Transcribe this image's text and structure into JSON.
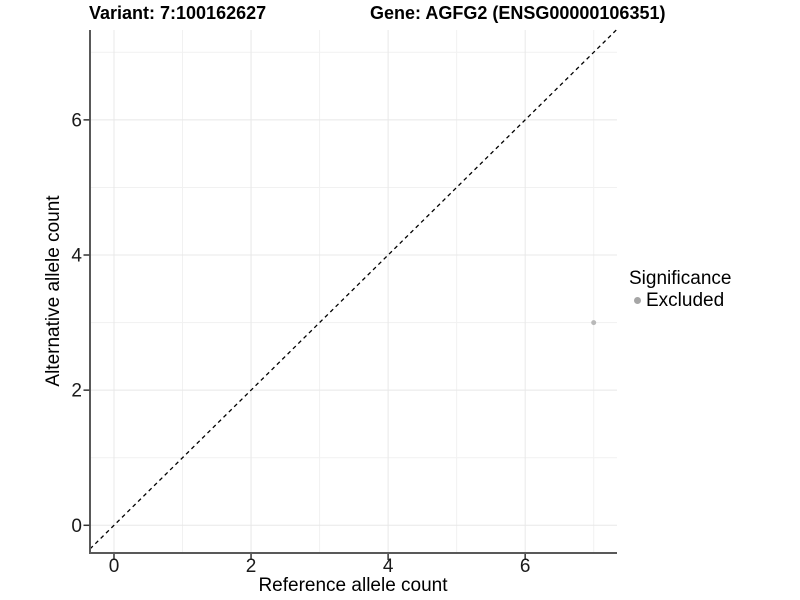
{
  "titles": {
    "variant": "Variant: 7:100162627",
    "gene": "Gene: AGFG2 (ENSG00000106351)"
  },
  "axes": {
    "xlabel": "Reference allele count",
    "ylabel": "Alternative allele count"
  },
  "legend": {
    "title": "Significance",
    "entries": [
      {
        "label": "Excluded",
        "color": "#a6a6a6"
      }
    ],
    "position": "right"
  },
  "chart_data": {
    "type": "scatter",
    "title": "Variant: 7:100162627    Gene: AGFG2 (ENSG00000106351)",
    "xlabel": "Reference allele count",
    "ylabel": "Alternative allele count",
    "x_ticks": [
      0,
      2,
      4,
      6
    ],
    "y_ticks": [
      0,
      2,
      4,
      6
    ],
    "x_minor_ticks": [
      1,
      3,
      5,
      7
    ],
    "y_minor_ticks": [
      1,
      3,
      5,
      7
    ],
    "xlim": [
      -0.35,
      7.34
    ],
    "ylim": [
      -0.41,
      7.33
    ],
    "grid": "major and minor gridlines",
    "reference_line": {
      "slope": 1,
      "intercept": 0,
      "style": "dashed",
      "color": "#000000"
    },
    "series": [
      {
        "name": "Excluded",
        "color": "#b9b9b9",
        "marker_radius_px": 2.5,
        "points": [
          {
            "x": 7,
            "y": 3
          }
        ]
      }
    ],
    "legend_position": "right"
  },
  "colors": {
    "axis_line": "#595959",
    "tick_mark": "#333333",
    "tick_label": "#1a1a1a",
    "grid_major": "#e8e8e8",
    "grid_minor": "#f1f1f1",
    "background": "#ffffff"
  }
}
